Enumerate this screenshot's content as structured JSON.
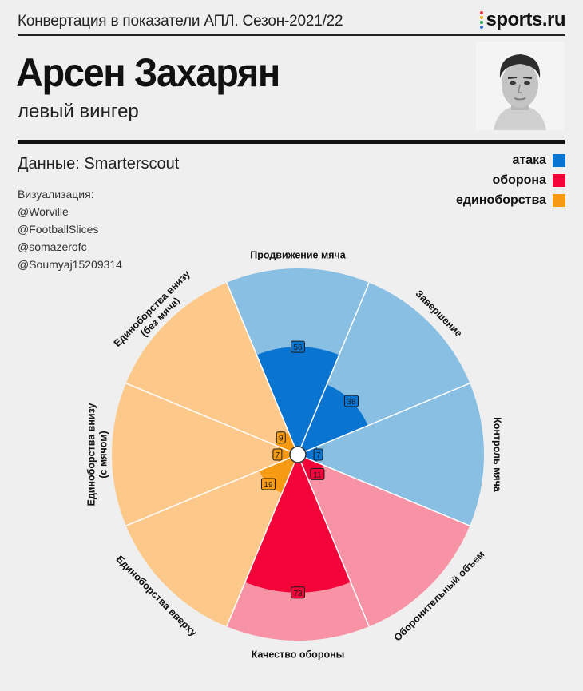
{
  "header": {
    "title": "Конвертация в показатели АПЛ. Сезон-2021/22",
    "brand": "sports.ru"
  },
  "player": {
    "name": "Арсен Захарян",
    "position": "левый вингер"
  },
  "source": "Данные: Smarterscout",
  "credits": {
    "title": "Визуализация:",
    "handles": [
      "@Worville",
      "@FootballSlices",
      "@somazerofc",
      "@Soumyaj15209314"
    ]
  },
  "legend": [
    {
      "label": "атака",
      "color": "#0a74d1"
    },
    {
      "label": "оборона",
      "color": "#f3053a"
    },
    {
      "label": "единоборства",
      "color": "#f59a12"
    }
  ],
  "chart_data": {
    "type": "pie",
    "title": "",
    "range": [
      0,
      100
    ],
    "categories": [
      {
        "label": "Продвижение мяча",
        "value": 56,
        "group": "атака"
      },
      {
        "label": "Завершение",
        "value": 38,
        "group": "атака"
      },
      {
        "label": "Контроль мяча",
        "value": 7,
        "group": "атака"
      },
      {
        "label": "Оборонительный объем",
        "value": 11,
        "group": "оборона"
      },
      {
        "label": "Качество обороны",
        "value": 73,
        "group": "оборона"
      },
      {
        "label": "Единоборства вверху",
        "value": 19,
        "group": "единоборства"
      },
      {
        "label": "Единоборства внизу (с мячом)",
        "value": 7,
        "group": "единоборства"
      },
      {
        "label": "Единоборства внизу (без мяча)",
        "value": 9,
        "group": "единоборства"
      }
    ],
    "colors": {
      "атака": {
        "bar": "#0a74d1",
        "bg": "#88bfe3"
      },
      "оборона": {
        "bar": "#f3053a",
        "bg": "#f893a5"
      },
      "единоборства": {
        "bar": "#f59a12",
        "bg": "#fdc98a"
      }
    }
  }
}
